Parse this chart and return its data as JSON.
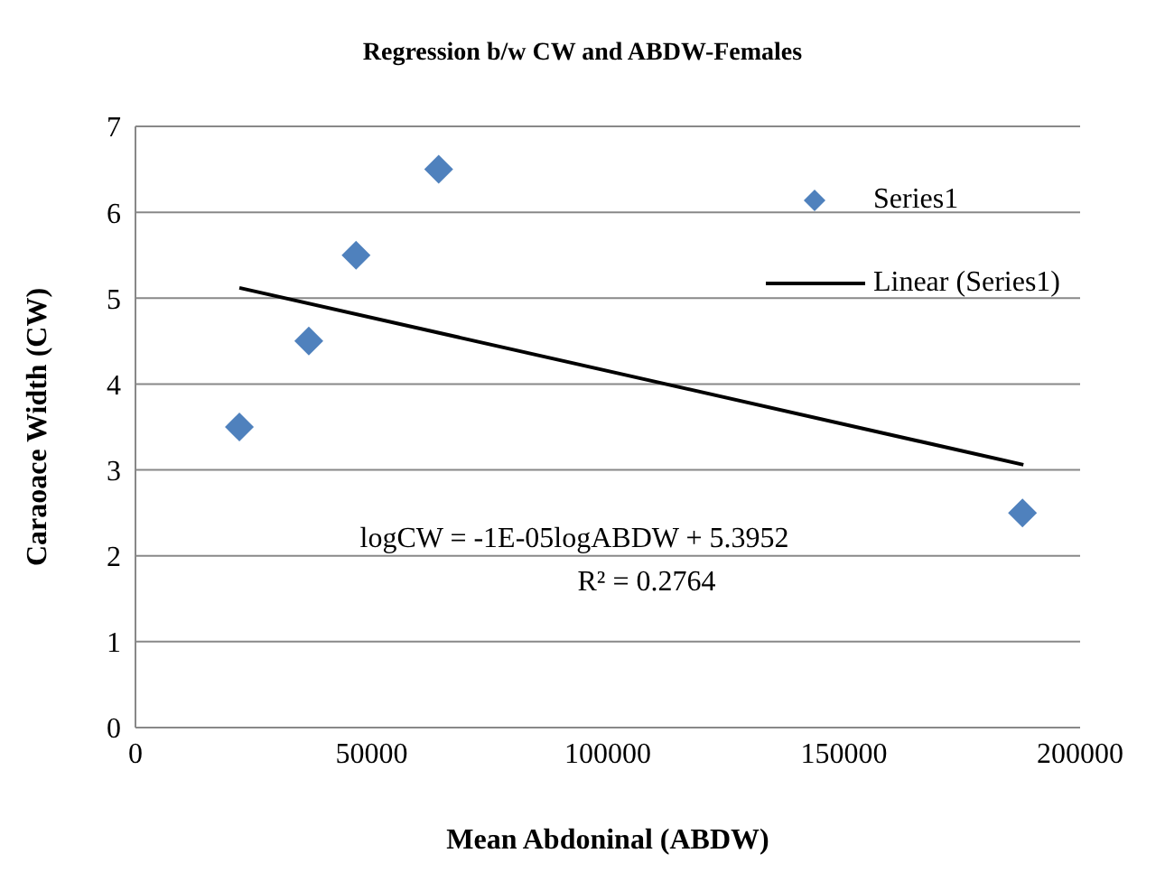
{
  "chart_data": {
    "type": "scatter",
    "title": "Regression b/w  CW and ABDW-Females",
    "xlabel": "Mean Abdoninal (ABDW)",
    "ylabel": "Caraoace Width (CW)",
    "xlim": [
      0,
      200000
    ],
    "xticks": [
      0,
      50000,
      100000,
      150000,
      200000
    ],
    "ylim": [
      0,
      7
    ],
    "yticks": [
      0,
      1,
      2,
      3,
      4,
      5,
      6,
      7
    ],
    "grid": "y",
    "legend": "top right",
    "series": [
      {
        "name": "Series1",
        "marker": "diamond",
        "color": "#4f81bd",
        "x": [
          22000,
          36700,
          46700,
          64200,
          187800
        ],
        "values": [
          3.5,
          4.5,
          5.5,
          6.5,
          2.5
        ]
      },
      {
        "name": "Linear (Series1)",
        "type": "line",
        "marker": "none",
        "line_style": "solid",
        "color": "#000000",
        "x": [
          22000,
          188000
        ],
        "values": [
          5.12,
          3.06
        ]
      }
    ],
    "annotations": [
      "logCW = -1E-05logABDW + 5.3952",
      "R² = 0.2764"
    ]
  }
}
